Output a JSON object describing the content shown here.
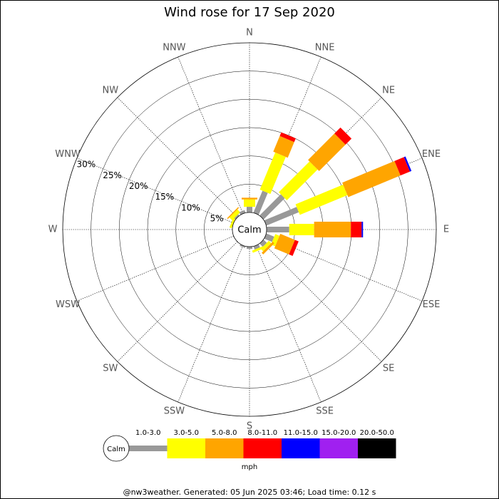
{
  "chart_data": {
    "type": "windrose",
    "title": "Wind rose for 17 Sep 2020",
    "directions": [
      "N",
      "NNE",
      "NE",
      "ENE",
      "E",
      "ESE",
      "SE",
      "SSE",
      "S",
      "SSW",
      "SW",
      "WSW",
      "W",
      "WNW",
      "NW",
      "NNW"
    ],
    "series": [
      {
        "name": "1.0-3.0",
        "color": "#999999",
        "values": [
          1.0,
          4.2,
          5.3,
          6.2,
          4.0,
          1.5,
          0.8,
          0.6,
          0.4,
          0.3,
          0,
          0,
          0,
          0,
          0.3,
          0.5
        ]
      },
      {
        "name": "3.0-5.0",
        "color": "#ffff00",
        "values": [
          1.3,
          7.1,
          7.7,
          9.1,
          4.4,
          0.8,
          0.6,
          0.4,
          0,
          0,
          0,
          0,
          0,
          0.4,
          0.7,
          0
        ]
      },
      {
        "name": "5.0-8.0",
        "color": "#ffa500",
        "values": [
          0.3,
          3.0,
          6.6,
          10.0,
          6.5,
          2.8,
          0.4,
          0,
          0,
          0,
          0,
          0,
          0,
          0,
          0.2,
          0
        ]
      },
      {
        "name": "8.0-11.0",
        "color": "#ff0000",
        "values": [
          0,
          0.7,
          1.5,
          1.8,
          1.9,
          0.7,
          0,
          0,
          0,
          0,
          0,
          0,
          0,
          0,
          0,
          0
        ]
      },
      {
        "name": "11.0-15.0",
        "color": "#0000ff",
        "values": [
          0,
          0,
          0,
          0.3,
          0.25,
          0,
          0,
          0,
          0,
          0,
          0,
          0,
          0,
          0,
          0,
          0
        ]
      },
      {
        "name": "15.0-20.0",
        "color": "#a020f0",
        "values": [
          0,
          0,
          0,
          0,
          0,
          0,
          0,
          0,
          0,
          0,
          0,
          0,
          0,
          0,
          0,
          0
        ]
      },
      {
        "name": "20.0-50.0",
        "color": "#000000",
        "values": [
          0,
          0,
          0,
          0,
          0,
          0,
          0,
          0,
          0,
          0,
          0,
          0,
          0,
          0,
          0,
          0
        ]
      }
    ],
    "rlim": [
      0,
      30
    ],
    "rticks": [
      {
        "value": 5,
        "label": "5%"
      },
      {
        "value": 10,
        "label": "10%"
      },
      {
        "value": 15,
        "label": "15%"
      },
      {
        "value": 20,
        "label": "20%"
      },
      {
        "value": 25,
        "label": "25%"
      },
      {
        "value": 30,
        "label": "30%"
      }
    ],
    "calm_label": "Calm",
    "unit": "mph",
    "footer": "@nw3weather. Generated: 05 Jun 2025 03:46; Load time: 0.12 s"
  }
}
